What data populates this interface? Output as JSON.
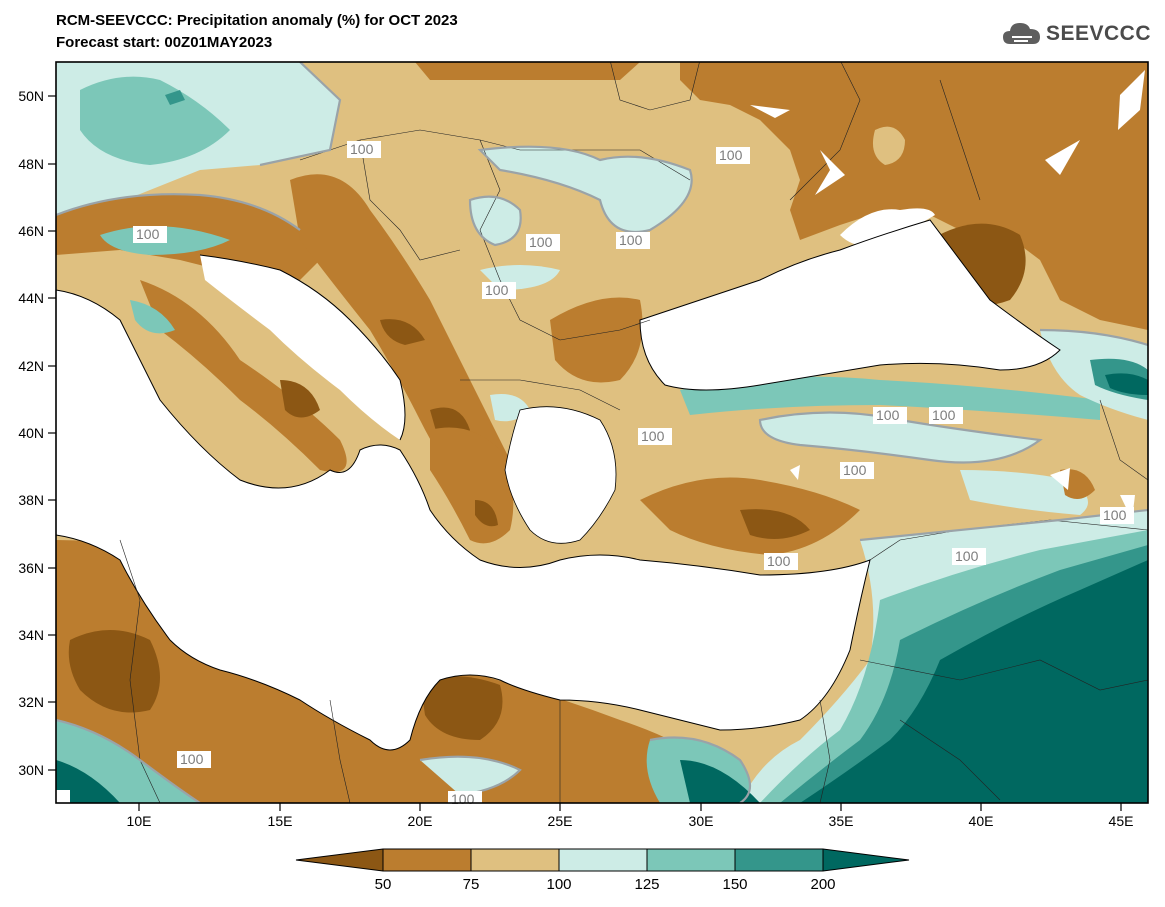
{
  "header": {
    "title_line1": "RCM-SEEVCCC: Precipitation anomaly (%) for OCT 2023",
    "title_line2": "Forecast start: 00Z01MAY2023"
  },
  "logo": {
    "text": "SEEVCCC",
    "icon": "cloud-icon"
  },
  "map": {
    "lat_labels": [
      "50N",
      "48N",
      "46N",
      "44N",
      "42N",
      "40N",
      "38N",
      "36N",
      "34N",
      "32N",
      "30N"
    ],
    "lon_labels": [
      "10E",
      "15E",
      "20E",
      "25E",
      "30E",
      "35E",
      "40E",
      "45E"
    ],
    "contour_label": "100"
  },
  "colorbar": {
    "labels": [
      "50",
      "75",
      "100",
      "125",
      "150",
      "200"
    ],
    "colors": [
      "#8c5714",
      "#bb7d2f",
      "#dfc080",
      "#cdece6",
      "#7cc7b8",
      "#34968b",
      "#006860"
    ]
  },
  "colors": {
    "land_default": "#dfc080",
    "sea": "#ffffff"
  }
}
